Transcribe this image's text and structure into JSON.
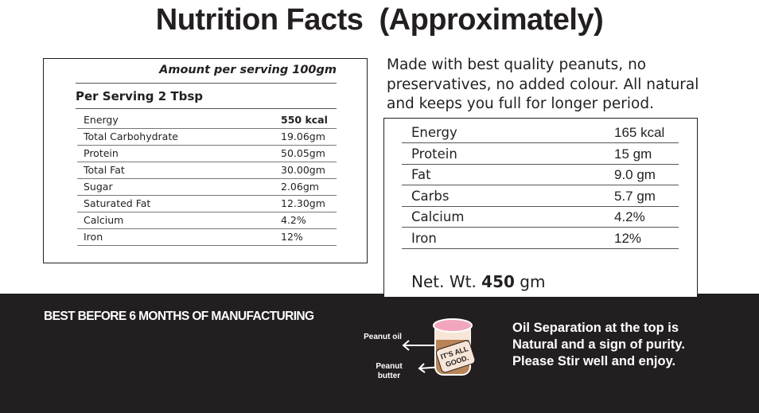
{
  "title": "Nutrition Facts  (Approximately)",
  "left_table": {
    "amount": "Amount per serving 100gm",
    "subheader": "Per Serving 2 Tbsp",
    "rows": [
      [
        "Energy",
        "550 kcal"
      ],
      [
        "Total Carbohydrate",
        "19.06gm"
      ],
      [
        "Protein",
        "50.05gm"
      ],
      [
        "Total Fat",
        "30.00gm"
      ],
      [
        "Sugar",
        "2.06gm"
      ],
      [
        "Saturated Fat",
        "12.30gm"
      ],
      [
        "Calcium",
        "4.2%"
      ],
      [
        "Iron",
        "12%"
      ]
    ]
  },
  "description": "Made with best quality peanuts, no preservatives, no added colour. All natural and keeps you full for longer period.",
  "right_table": {
    "rows": [
      [
        "Energy",
        "165 kcal"
      ],
      [
        "Protein",
        "15 gm"
      ],
      [
        "Fat",
        "9.0 gm"
      ],
      [
        "Carbs",
        "5.7 gm"
      ],
      [
        "Calcium",
        "4.2%"
      ],
      [
        "Iron",
        "12%"
      ]
    ],
    "net_weight": {
      "label": "Net. Wt.",
      "value": "450",
      "unit": "gm"
    }
  },
  "footer": {
    "best_before": "BEST BEFORE 6 MONTHS OF MANUFACTURING",
    "jar_labels": {
      "oil": "Peanut oil",
      "butter": "Peanut butter",
      "badge": [
        "IT'S ALL",
        "GOOD."
      ]
    },
    "note": [
      "Oil Separation at the top is",
      "Natural and a sign of purity.",
      "Please Stir well and enjoy."
    ]
  }
}
